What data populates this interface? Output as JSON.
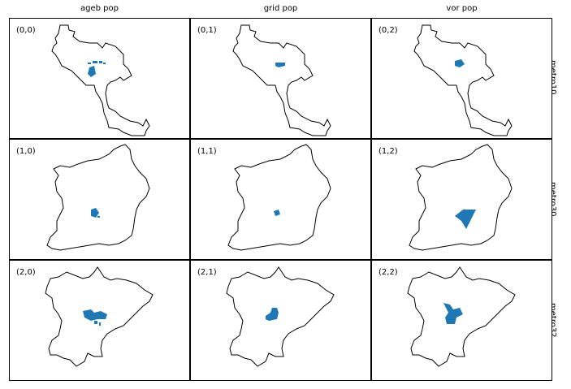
{
  "chart_data": {
    "type": "map-grid",
    "columns": [
      "ageb pop",
      "grid pop",
      "vor pop"
    ],
    "rows": [
      "metro10",
      "metro30",
      "metro32"
    ],
    "panel_labels": [
      [
        "(0,0)",
        "(0,1)",
        "(0,2)"
      ],
      [
        "(1,0)",
        "(1,1)",
        "(1,2)"
      ],
      [
        "(2,0)",
        "(2,1)",
        "(2,2)"
      ]
    ],
    "boundary_color": "#000000",
    "fill_color": "#1f77b4"
  }
}
